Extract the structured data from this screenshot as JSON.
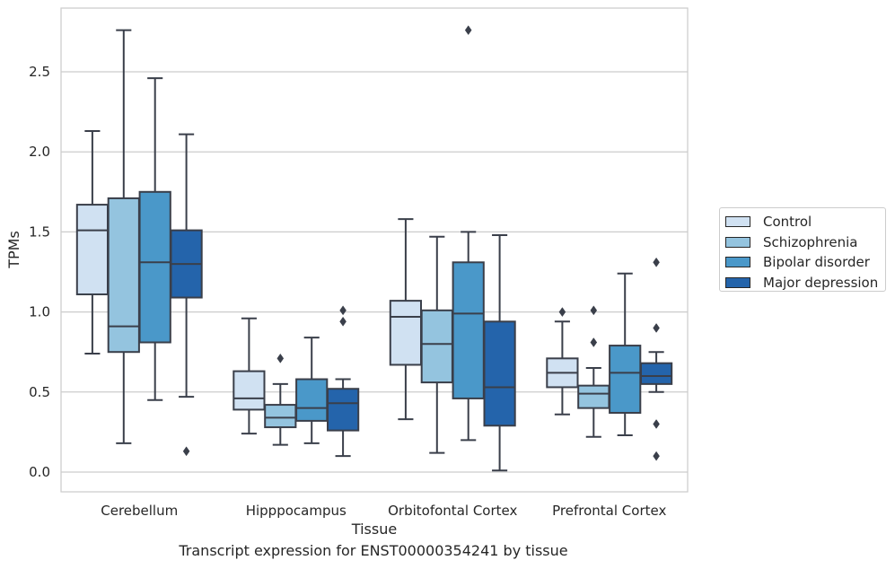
{
  "caption": "Transcript expression for ENST00000354241 by tissue",
  "chart_data": {
    "type": "box",
    "title": "",
    "xlabel": "Tissue",
    "ylabel": "TPMs",
    "ylim": [
      -0.12,
      2.9
    ],
    "yticks": [
      "0.0",
      "0.5",
      "1.0",
      "1.5",
      "2.0",
      "2.5"
    ],
    "grid": "horizontal",
    "legend_position": "right",
    "categories": [
      "Cerebellum",
      "Hipppocampus",
      "Orbitofontal Cortex",
      "Prefrontal Cortex"
    ],
    "series": [
      {
        "name": "Control",
        "color": "#d0e1f2",
        "boxes": [
          {
            "whisker_low": 0.74,
            "q1": 1.11,
            "median": 1.51,
            "q3": 1.67,
            "whisker_high": 2.13,
            "outliers": []
          },
          {
            "whisker_low": 0.24,
            "q1": 0.39,
            "median": 0.46,
            "q3": 0.63,
            "whisker_high": 0.96,
            "outliers": []
          },
          {
            "whisker_low": 0.33,
            "q1": 0.67,
            "median": 0.97,
            "q3": 1.07,
            "whisker_high": 1.58,
            "outliers": []
          },
          {
            "whisker_low": 0.36,
            "q1": 0.53,
            "median": 0.62,
            "q3": 0.71,
            "whisker_high": 0.94,
            "outliers": [
              1.0
            ]
          }
        ]
      },
      {
        "name": "Schizophrenia",
        "color": "#94c4df",
        "boxes": [
          {
            "whisker_low": 0.18,
            "q1": 0.75,
            "median": 0.91,
            "q3": 1.71,
            "whisker_high": 2.76,
            "outliers": []
          },
          {
            "whisker_low": 0.17,
            "q1": 0.28,
            "median": 0.34,
            "q3": 0.42,
            "whisker_high": 0.55,
            "outliers": [
              0.71
            ]
          },
          {
            "whisker_low": 0.12,
            "q1": 0.56,
            "median": 0.8,
            "q3": 1.01,
            "whisker_high": 1.47,
            "outliers": []
          },
          {
            "whisker_low": 0.22,
            "q1": 0.4,
            "median": 0.49,
            "q3": 0.54,
            "whisker_high": 0.65,
            "outliers": [
              0.81,
              1.01
            ]
          }
        ]
      },
      {
        "name": "Bipolar disorder",
        "color": "#4a98c9",
        "boxes": [
          {
            "whisker_low": 0.45,
            "q1": 0.81,
            "median": 1.31,
            "q3": 1.75,
            "whisker_high": 2.46,
            "outliers": []
          },
          {
            "whisker_low": 0.18,
            "q1": 0.32,
            "median": 0.4,
            "q3": 0.58,
            "whisker_high": 0.84,
            "outliers": []
          },
          {
            "whisker_low": 0.2,
            "q1": 0.46,
            "median": 0.99,
            "q3": 1.31,
            "whisker_high": 1.5,
            "outliers": [
              2.76
            ]
          },
          {
            "whisker_low": 0.23,
            "q1": 0.37,
            "median": 0.62,
            "q3": 0.79,
            "whisker_high": 1.24,
            "outliers": []
          }
        ]
      },
      {
        "name": "Major depression",
        "color": "#2464ab",
        "boxes": [
          {
            "whisker_low": 0.47,
            "q1": 1.09,
            "median": 1.3,
            "q3": 1.51,
            "whisker_high": 2.11,
            "outliers": [
              0.13
            ]
          },
          {
            "whisker_low": 0.1,
            "q1": 0.26,
            "median": 0.43,
            "q3": 0.52,
            "whisker_high": 0.58,
            "outliers": [
              0.94,
              1.01
            ]
          },
          {
            "whisker_low": 0.01,
            "q1": 0.29,
            "median": 0.53,
            "q3": 0.94,
            "whisker_high": 1.48,
            "outliers": []
          },
          {
            "whisker_low": 0.5,
            "q1": 0.55,
            "median": 0.6,
            "q3": 0.68,
            "whisker_high": 0.75,
            "outliers": [
              0.1,
              0.3,
              0.9,
              1.31
            ]
          }
        ]
      }
    ]
  }
}
